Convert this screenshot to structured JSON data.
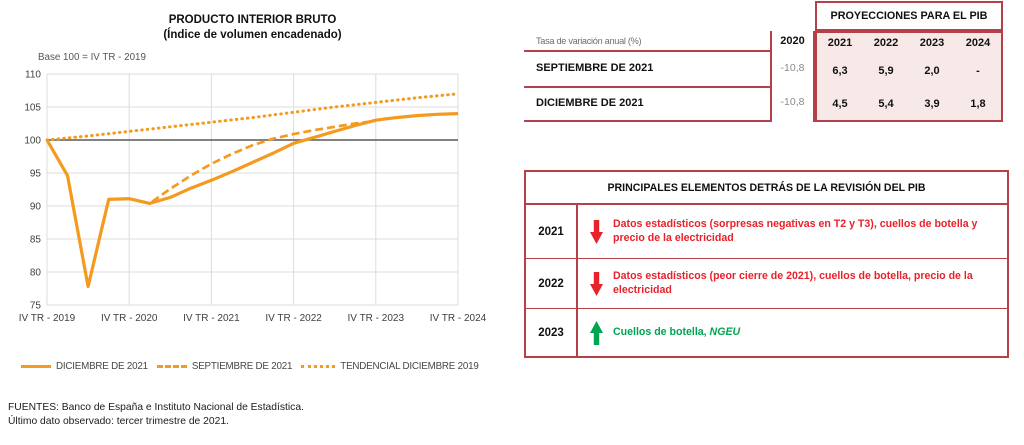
{
  "colors": {
    "orange_line": "#F39A1F",
    "table_border_red": "#B5404A",
    "table_fill_pink": "#F8E9E9",
    "revision_red_text": "#E8222B",
    "revision_green_text": "#00A551",
    "gridline": "#DCDCDC",
    "baseline_gray": "#595959",
    "muted_value_gray": "#8A8A8A"
  },
  "chart": {
    "title_line1": "PRODUCTO INTERIOR BRUTO",
    "title_line2": "(Índice de volumen encadenado)",
    "subtitle": "Base 100 = IV TR - 2019"
  },
  "chart_data": {
    "type": "line",
    "title": "PRODUCTO INTERIOR BRUTO (Índice de volumen encadenado)",
    "subtitle": "Base 100 = IV TR - 2019",
    "x_unit": "quarters, from IV TR 2019 to IV TR 2024",
    "x_year_tick_labels": [
      "IV TR - 2019",
      "IV TR - 2020",
      "IV TR - 2021",
      "IV TR - 2022",
      "IV TR - 2023",
      "IV TR - 2024"
    ],
    "quarters_per_tick": 4,
    "y_ticks": [
      75,
      80,
      85,
      90,
      95,
      100,
      105,
      110
    ],
    "ylim": [
      75,
      110
    ],
    "baseline": 100,
    "grid": true,
    "legend_position": "bottom",
    "series": [
      {
        "name": "DICIEMBRE DE 2021",
        "line_style": "solid",
        "values": [
          100,
          94.6,
          77.8,
          91.0,
          91.1,
          90.4,
          91.3,
          92.7,
          93.9,
          95.2,
          96.6,
          98.0,
          99.5,
          100.4,
          101.3,
          102.2,
          103.0,
          103.4,
          103.7,
          103.9,
          104.0
        ]
      },
      {
        "name": "SEPTIEMBRE DE 2021",
        "line_style": "dashed",
        "values": [
          100,
          94.6,
          77.8,
          91.0,
          91.1,
          90.4,
          92.6,
          94.6,
          96.4,
          97.9,
          99.2,
          100.2,
          100.9,
          101.5,
          102.0,
          102.5,
          102.9,
          null,
          null,
          null,
          null
        ]
      },
      {
        "name": "TENDENCIAL DICIEMBRE 2019",
        "line_style": "dotted",
        "values": [
          100,
          100.3,
          100.6,
          100.95,
          101.3,
          101.65,
          102.0,
          102.35,
          102.7,
          103.05,
          103.4,
          103.8,
          104.2,
          104.6,
          105.0,
          105.35,
          105.7,
          106.05,
          106.4,
          106.7,
          107.0
        ]
      }
    ]
  },
  "projections_table": {
    "header": "PROYECCIONES PARA EL PIB",
    "row_label_header": "Tasa de variación anual (%)",
    "base_year_col": "2020",
    "year_cols": [
      "2021",
      "2022",
      "2023",
      "2024"
    ],
    "rows": [
      {
        "label": "SEPTIEMBRE DE 2021",
        "base": "-10,8",
        "values": [
          "6,3",
          "5,9",
          "2,0",
          "-"
        ]
      },
      {
        "label": "DICIEMBRE DE 2021",
        "base": "-10,8",
        "values": [
          "4,5",
          "5,4",
          "3,9",
          "1,8"
        ]
      }
    ]
  },
  "revision_table": {
    "title": "PRINCIPALES ELEMENTOS DETRÁS DE LA REVISIÓN DEL PIB",
    "rows": [
      {
        "year": "2021",
        "direction": "down",
        "text": "Datos estadísticos (sorpresas negativas en T2 y T3), cuellos de botella y precio de la electricidad",
        "italic_suffix": ""
      },
      {
        "year": "2022",
        "direction": "down",
        "text": "Datos estadísticos (peor cierre de 2021), cuellos de botella, precio de la electricidad",
        "italic_suffix": ""
      },
      {
        "year": "2023",
        "direction": "up",
        "text": "Cuellos de botella, ",
        "italic_suffix": "NGEU"
      }
    ]
  },
  "footnotes": {
    "line1": "FUENTES: Banco de España e Instituto Nacional de Estadística.",
    "line2": "Último dato observado: tercer trimestre de 2021."
  }
}
